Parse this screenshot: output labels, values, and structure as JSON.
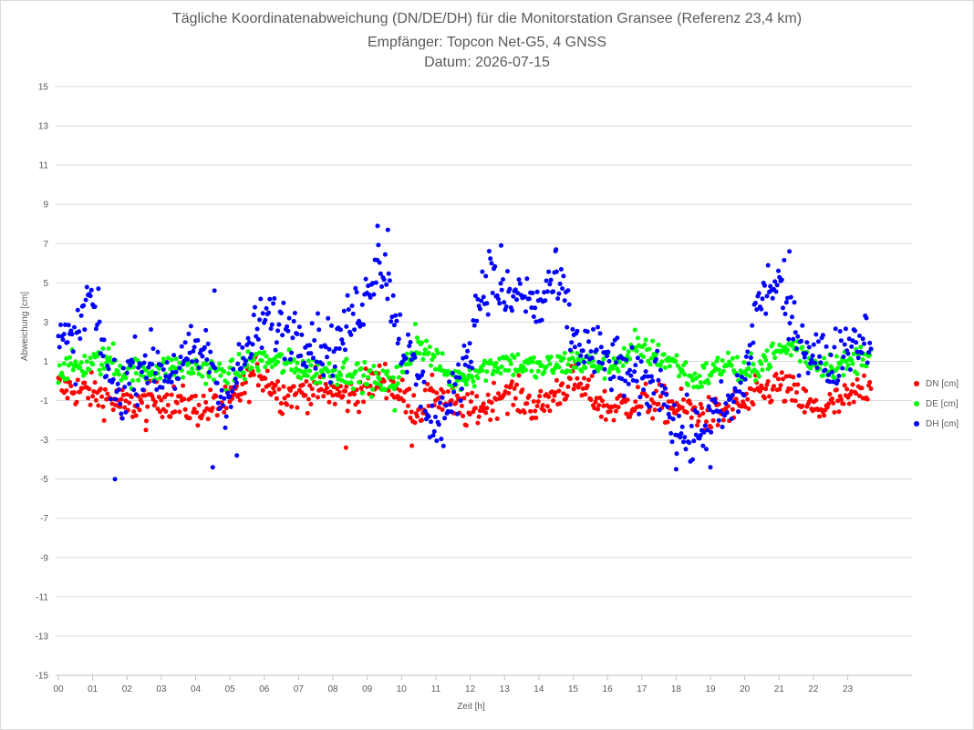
{
  "chart_data": {
    "type": "scatter",
    "title": "Tägliche Koordinatenabweichung (DN/DE/DH) für die Monitorstation Gransee (Referenz 23,4 km)",
    "subtitle1": "Empfänger: Topcon Net-G5, 4 GNSS",
    "subtitle2": "Datum: 2026-07-15",
    "xlabel": "Zeit [h]",
    "ylabel": "Abweichung [cm]",
    "xlim": [
      0,
      24.5
    ],
    "ylim": [
      -15,
      15
    ],
    "yticks": [
      "15",
      "13",
      "11",
      "9",
      "7",
      "5",
      "3",
      "1",
      "-1",
      "-3",
      "-5",
      "-7",
      "-9",
      "-11",
      "-13",
      "-15"
    ],
    "xticks": [
      "00",
      "01",
      "02",
      "03",
      "04",
      "05",
      "06",
      "07",
      "08",
      "09",
      "10",
      "11",
      "12",
      "13",
      "14",
      "15",
      "16",
      "17",
      "18",
      "19",
      "20",
      "21",
      "22",
      "23"
    ],
    "grid": "horizontal",
    "legend_position": "right",
    "sample_interval_h": 0.0333,
    "series": [
      {
        "name": "DN [cm]",
        "color": "#ff0000",
        "anchors": [
          [
            0,
            -0.3
          ],
          [
            1,
            -0.6
          ],
          [
            2,
            -1.3
          ],
          [
            3,
            -0.9
          ],
          [
            4,
            -1.4
          ],
          [
            5,
            -1.2
          ],
          [
            5.8,
            0.6
          ],
          [
            6.5,
            -0.7
          ],
          [
            7.5,
            -0.4
          ],
          [
            8.5,
            -0.8
          ],
          [
            9.5,
            0.2
          ],
          [
            10,
            -0.8
          ],
          [
            10.5,
            -1.5
          ],
          [
            11,
            -0.6
          ],
          [
            11.5,
            -1.3
          ],
          [
            12,
            -1.6
          ],
          [
            12.5,
            -1.2
          ],
          [
            13,
            -0.5
          ],
          [
            14,
            -1.4
          ],
          [
            14.5,
            -0.6
          ],
          [
            15,
            0.0
          ],
          [
            16,
            -1.4
          ],
          [
            17,
            -1.0
          ],
          [
            18,
            -1.3
          ],
          [
            19,
            -1.8
          ],
          [
            20,
            -1.2
          ],
          [
            20.5,
            -0.6
          ],
          [
            21,
            -0.2
          ],
          [
            21.5,
            -0.8
          ],
          [
            22,
            -1.5
          ],
          [
            23,
            -1.0
          ],
          [
            23.6,
            -0.2
          ]
        ],
        "noise": 0.45,
        "outliers": [
          [
            8.38,
            -3.4
          ],
          [
            1.85,
            -1.9
          ],
          [
            2.55,
            -2.5
          ],
          [
            10.3,
            -3.3
          ]
        ]
      },
      {
        "name": "DE [cm]",
        "color": "#00ff00",
        "anchors": [
          [
            0,
            0.6
          ],
          [
            1,
            0.9
          ],
          [
            1.5,
            1.1
          ],
          [
            2,
            0.4
          ],
          [
            3,
            0.6
          ],
          [
            4,
            0.7
          ],
          [
            5,
            0.3
          ],
          [
            5.8,
            1.1
          ],
          [
            6.5,
            0.9
          ],
          [
            7.5,
            0.5
          ],
          [
            8.5,
            0.5
          ],
          [
            9.5,
            -0.2
          ],
          [
            10,
            0.4
          ],
          [
            10.5,
            2.0
          ],
          [
            11,
            1.0
          ],
          [
            11.5,
            0.0
          ],
          [
            12.5,
            0.7
          ],
          [
            13,
            1.0
          ],
          [
            14,
            0.6
          ],
          [
            15,
            1.0
          ],
          [
            16,
            0.8
          ],
          [
            17,
            1.6
          ],
          [
            18,
            0.9
          ],
          [
            18.5,
            0.0
          ],
          [
            19,
            0.4
          ],
          [
            19.5,
            1.0
          ],
          [
            20,
            0.2
          ],
          [
            20.5,
            1.0
          ],
          [
            21,
            1.5
          ],
          [
            21.5,
            1.8
          ],
          [
            22,
            0.9
          ],
          [
            23,
            0.8
          ],
          [
            23.6,
            1.5
          ]
        ],
        "noise": 0.35,
        "outliers": [
          [
            10.4,
            2.9
          ],
          [
            9.8,
            -1.5
          ],
          [
            16.8,
            2.6
          ],
          [
            1.6,
            1.9
          ]
        ]
      },
      {
        "name": "DH [cm]",
        "color": "#0000ff",
        "anchors": [
          [
            0,
            2.0
          ],
          [
            0.5,
            1.8
          ],
          [
            0.9,
            4.5
          ],
          [
            1.1,
            3.0
          ],
          [
            1.5,
            0.0
          ],
          [
            1.8,
            -0.8
          ],
          [
            2,
            0.2
          ],
          [
            2.5,
            1.0
          ],
          [
            3,
            0.5
          ],
          [
            3.5,
            0.6
          ],
          [
            4,
            1.5
          ],
          [
            4.5,
            1.2
          ],
          [
            4.7,
            -1.0
          ],
          [
            5,
            -0.5
          ],
          [
            5.5,
            1.5
          ],
          [
            6,
            3.2
          ],
          [
            6.5,
            2.8
          ],
          [
            7,
            2.5
          ],
          [
            7.5,
            2.0
          ],
          [
            8,
            1.5
          ],
          [
            8.5,
            3.0
          ],
          [
            9,
            4.5
          ],
          [
            9.3,
            6.5
          ],
          [
            9.6,
            5.0
          ],
          [
            10,
            2.0
          ],
          [
            10.5,
            0.0
          ],
          [
            11,
            -2.5
          ],
          [
            11.5,
            -1.0
          ],
          [
            12,
            2.0
          ],
          [
            12.3,
            4.5
          ],
          [
            12.6,
            5.5
          ],
          [
            13,
            4.0
          ],
          [
            13.5,
            4.5
          ],
          [
            14,
            3.5
          ],
          [
            14.3,
            5.0
          ],
          [
            14.7,
            4.5
          ],
          [
            15,
            2.0
          ],
          [
            15.5,
            1.5
          ],
          [
            16,
            1.0
          ],
          [
            16.5,
            0.5
          ],
          [
            17,
            -0.5
          ],
          [
            17.5,
            0.5
          ],
          [
            18,
            -2.5
          ],
          [
            18.5,
            -3.0
          ],
          [
            19,
            -2.0
          ],
          [
            19.5,
            -1.5
          ],
          [
            20,
            0.0
          ],
          [
            20.3,
            3.5
          ],
          [
            20.7,
            4.8
          ],
          [
            21,
            5.0
          ],
          [
            21.3,
            3.0
          ],
          [
            21.7,
            2.0
          ],
          [
            22,
            1.5
          ],
          [
            22.5,
            0.8
          ],
          [
            23,
            2.0
          ],
          [
            23.5,
            2.2
          ]
        ],
        "noise": 0.75,
        "outliers": [
          [
            1.65,
            -5.0
          ],
          [
            4.5,
            -4.4
          ],
          [
            5.2,
            -3.8
          ],
          [
            9.3,
            7.9
          ],
          [
            9.6,
            7.7
          ],
          [
            12.9,
            6.9
          ],
          [
            14.5,
            6.7
          ],
          [
            18.0,
            -4.5
          ],
          [
            19.0,
            -4.4
          ],
          [
            21.3,
            6.6
          ],
          [
            4.55,
            4.6
          ]
        ]
      }
    ]
  }
}
